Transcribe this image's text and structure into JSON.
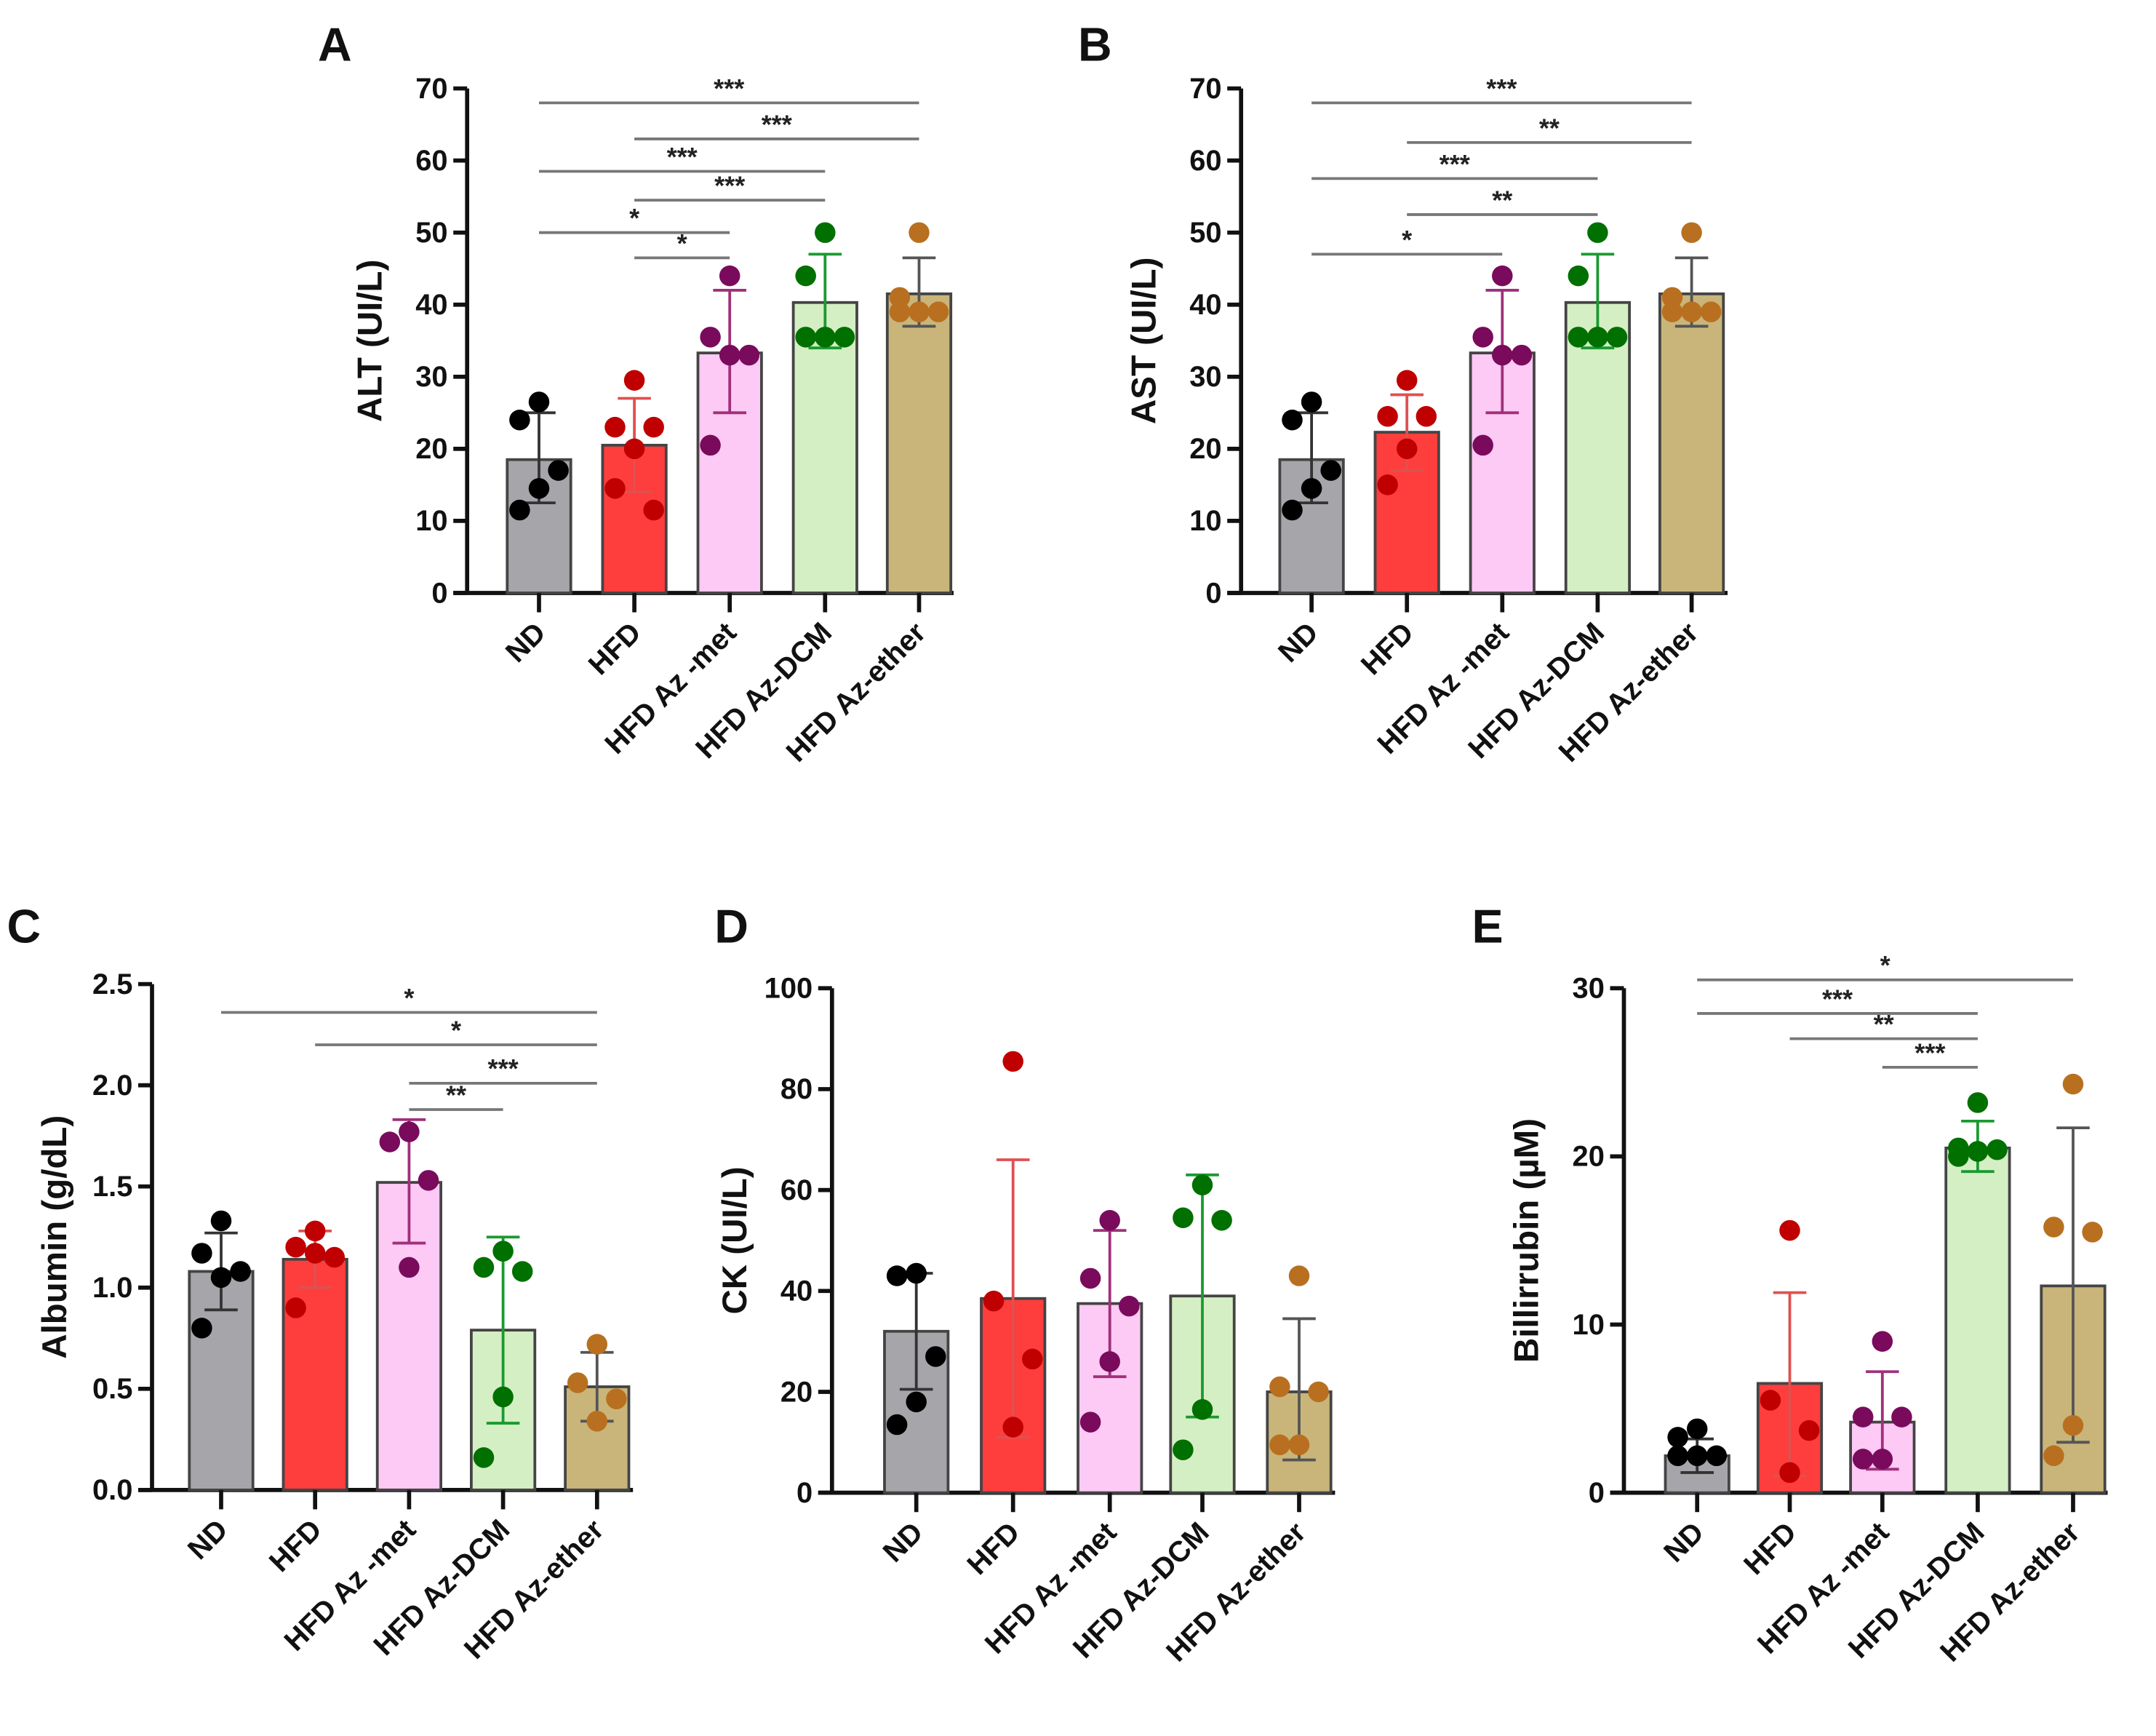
{
  "chart_data": [
    {
      "type": "bar",
      "panel": "A",
      "ylabel": "ALT (UI/L)",
      "ylim": [
        0,
        70
      ],
      "yticks": [
        0,
        10,
        20,
        30,
        40,
        50,
        60,
        70
      ],
      "categories": [
        "ND",
        "HFD",
        "HFD Az -met",
        "HFD Az-DCM",
        "HFD Az-ether"
      ],
      "means": [
        18.5,
        20.5,
        33.3,
        40.3,
        41.5
      ],
      "error_bars": [
        [
          12.5,
          25
        ],
        [
          14,
          27
        ],
        [
          25,
          42
        ],
        [
          34,
          47
        ],
        [
          37,
          46.5
        ]
      ],
      "points": [
        [
          26.5,
          24,
          17,
          14.5,
          11.5
        ],
        [
          29.5,
          23,
          23,
          20,
          14.5,
          11.5
        ],
        [
          44,
          35.5,
          33,
          33,
          20.5
        ],
        [
          50,
          44,
          35.5,
          35.5,
          35.5
        ],
        [
          50,
          41,
          39,
          39,
          39
        ]
      ],
      "significance": [
        {
          "from": 0,
          "to": 4,
          "y": 68,
          "label": "***"
        },
        {
          "from": 1,
          "to": 4,
          "y": 63,
          "label": "***"
        },
        {
          "from": 0,
          "to": 3,
          "y": 58.5,
          "label": "***"
        },
        {
          "from": 1,
          "to": 3,
          "y": 54.5,
          "label": "***"
        },
        {
          "from": 0,
          "to": 2,
          "y": 50,
          "label": "*"
        },
        {
          "from": 1,
          "to": 2,
          "y": 46.5,
          "label": "*"
        }
      ]
    },
    {
      "type": "bar",
      "panel": "B",
      "ylabel": "AST (UI/L)",
      "ylim": [
        0,
        70
      ],
      "yticks": [
        0,
        10,
        20,
        30,
        40,
        50,
        60,
        70
      ],
      "categories": [
        "ND",
        "HFD",
        "HFD Az -met",
        "HFD Az-DCM",
        "HFD Az-ether"
      ],
      "means": [
        18.5,
        22.3,
        33.3,
        40.3,
        41.5
      ],
      "error_bars": [
        [
          12.5,
          25
        ],
        [
          17,
          27.5
        ],
        [
          25,
          42
        ],
        [
          34,
          47
        ],
        [
          37,
          46.5
        ]
      ],
      "points": [
        [
          26.5,
          24,
          17,
          14.5,
          11.5
        ],
        [
          29.5,
          24.5,
          24.5,
          20,
          15
        ],
        [
          44,
          35.5,
          33,
          33,
          20.5
        ],
        [
          50,
          44,
          35.5,
          35.5,
          35.5
        ],
        [
          50,
          41,
          39,
          39,
          39
        ]
      ],
      "significance": [
        {
          "from": 0,
          "to": 4,
          "y": 68,
          "label": "***"
        },
        {
          "from": 1,
          "to": 4,
          "y": 62.5,
          "label": "**"
        },
        {
          "from": 0,
          "to": 3,
          "y": 57.5,
          "label": "***"
        },
        {
          "from": 1,
          "to": 3,
          "y": 52.5,
          "label": "**"
        },
        {
          "from": 0,
          "to": 2,
          "y": 47,
          "label": "*"
        }
      ]
    },
    {
      "type": "bar",
      "panel": "C",
      "ylabel": "Albumin (g/dL)",
      "ylim": [
        0,
        2.5
      ],
      "yticks": [
        "0.0",
        "0.5",
        "1.0",
        "1.5",
        "2.0",
        "2.5"
      ],
      "categories": [
        "ND",
        "HFD",
        "HFD Az -met",
        "HFD Az-DCM",
        "HFD Az-ether"
      ],
      "means": [
        1.08,
        1.14,
        1.52,
        0.79,
        0.51
      ],
      "error_bars": [
        [
          0.89,
          1.27
        ],
        [
          1.0,
          1.28
        ],
        [
          1.22,
          1.83
        ],
        [
          0.33,
          1.25
        ],
        [
          0.34,
          0.68
        ]
      ],
      "points": [
        [
          1.33,
          1.17,
          1.08,
          1.05,
          0.8
        ],
        [
          1.28,
          1.2,
          1.15,
          1.17,
          0.9
        ],
        [
          1.77,
          1.72,
          1.53,
          1.1
        ],
        [
          1.18,
          1.1,
          1.08,
          0.46,
          0.16
        ],
        [
          0.72,
          0.53,
          0.45,
          0.34
        ]
      ],
      "significance": [
        {
          "from": 0,
          "to": 4,
          "y": 2.36,
          "label": "*"
        },
        {
          "from": 1,
          "to": 4,
          "y": 2.2,
          "label": "*"
        },
        {
          "from": 2,
          "to": 4,
          "y": 2.01,
          "label": "***"
        },
        {
          "from": 2,
          "to": 3,
          "y": 1.88,
          "label": "**"
        }
      ]
    },
    {
      "type": "bar",
      "panel": "D",
      "ylabel": "CK (UI/L)",
      "ylim": [
        0,
        100
      ],
      "yticks": [
        0,
        20,
        40,
        60,
        80,
        100
      ],
      "categories": [
        "ND",
        "HFD",
        "HFD Az -met",
        "HFD Az-DCM",
        "HFD Az-ether"
      ],
      "means": [
        32,
        38.5,
        37.5,
        39,
        20
      ],
      "error_bars": [
        [
          20.5,
          43.5
        ],
        [
          11,
          66
        ],
        [
          23,
          52
        ],
        [
          15,
          63
        ],
        [
          6.5,
          34.5
        ]
      ],
      "points": [
        [
          43.5,
          43,
          27,
          18,
          13.5
        ],
        [
          85.5,
          38,
          26.5,
          13
        ],
        [
          54,
          42.5,
          37,
          26,
          14
        ],
        [
          61,
          54.5,
          54,
          16.5,
          8.5
        ],
        [
          43,
          21,
          20,
          9.5,
          9.5
        ]
      ],
      "significance": []
    },
    {
      "type": "bar",
      "panel": "E",
      "ylabel": "Billirrubin (µM)",
      "ylim": [
        0,
        30
      ],
      "yticks": [
        0,
        10,
        20,
        30
      ],
      "categories": [
        "ND",
        "HFD",
        "HFD Az -met",
        "HFD Az-DCM",
        "HFD Az-ether"
      ],
      "means": [
        2.2,
        6.5,
        4.2,
        20.5,
        12.3
      ],
      "error_bars": [
        [
          1.2,
          3.2
        ],
        [
          1.0,
          11.9
        ],
        [
          1.4,
          7.2
        ],
        [
          19.1,
          22.1
        ],
        [
          3,
          21.7
        ]
      ],
      "points": [
        [
          3.8,
          3.3,
          2.2,
          2.2,
          2.2
        ],
        [
          15.6,
          5.5,
          3.7,
          1.2
        ],
        [
          9,
          4.5,
          4.5,
          2,
          2
        ],
        [
          23.2,
          20.5,
          20.4,
          20.3,
          20
        ],
        [
          24.3,
          15.8,
          15.5,
          4,
          2.2
        ]
      ],
      "significance": [
        {
          "from": 0,
          "to": 4,
          "y": 30.5,
          "label": "*"
        },
        {
          "from": 0,
          "to": 3,
          "y": 28.5,
          "label": "***"
        },
        {
          "from": 1,
          "to": 3,
          "y": 27,
          "label": "**"
        },
        {
          "from": 2,
          "to": 3,
          "y": 25.3,
          "label": "***"
        }
      ]
    }
  ],
  "colors": {
    "bar_fill": [
      "#a6a5aa",
      "#fe3d3d",
      "#fdc9f5",
      "#d5efc4",
      "#c9b57a"
    ],
    "dot": [
      "#000000",
      "#c00000",
      "#7a0a5c",
      "#007000",
      "#b87020"
    ],
    "errbar": [
      "#333333",
      "#e05050",
      "#a0307a",
      "#1a9a30",
      "#555555"
    ]
  }
}
